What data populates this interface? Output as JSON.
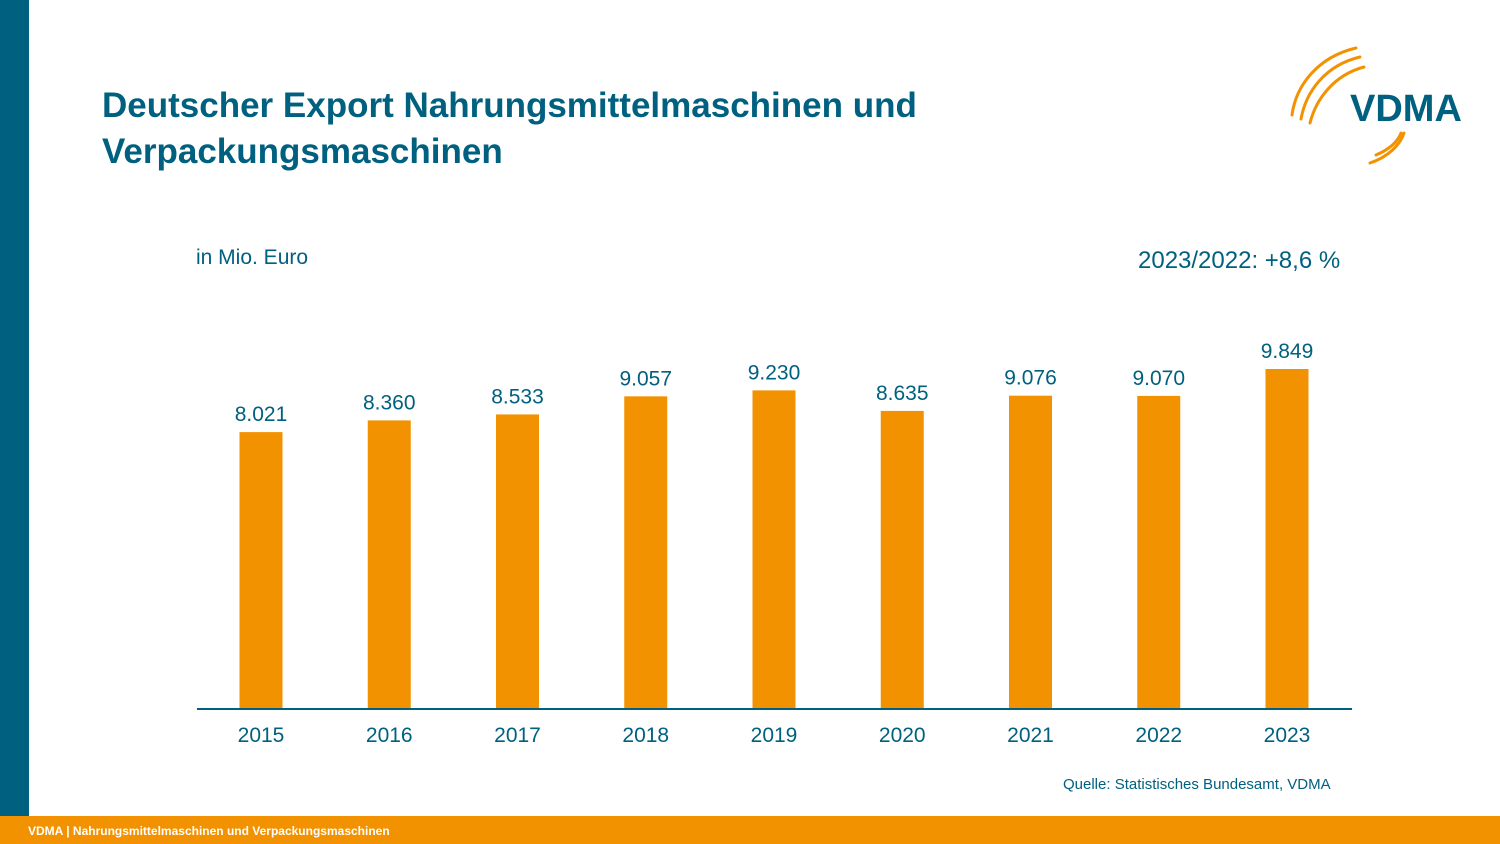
{
  "slide": {
    "title_line1": "Deutscher Export Nahrungsmittelmaschinen und",
    "title_line2": "Verpackungsmaschinen",
    "unit_label": "in Mio. Euro",
    "growth_label": "2023/2022: +8,6 %",
    "source": "Quelle: Statistisches Bundesamt, VDMA",
    "footer": "VDMA | Nahrungsmittelmaschinen und Verpackungsmaschinen",
    "logo_text": "VDMA"
  },
  "colors": {
    "primary": "#00607f",
    "bar": "#f39200",
    "footer": "#f39200"
  },
  "chart_data": {
    "type": "bar",
    "categories": [
      "2015",
      "2016",
      "2017",
      "2018",
      "2019",
      "2020",
      "2021",
      "2022",
      "2023"
    ],
    "values": [
      8021,
      8360,
      8533,
      9057,
      9230,
      8635,
      9076,
      9070,
      9849
    ],
    "labels": [
      "8.021",
      "8.360",
      "8.533",
      "9.057",
      "9.230",
      "8.635",
      "9.076",
      "9.070",
      "9.849"
    ],
    "title": "",
    "xlabel": "",
    "ylabel": "in Mio. Euro",
    "ylim": [
      0,
      9849
    ],
    "grid": false,
    "legend": "none"
  }
}
